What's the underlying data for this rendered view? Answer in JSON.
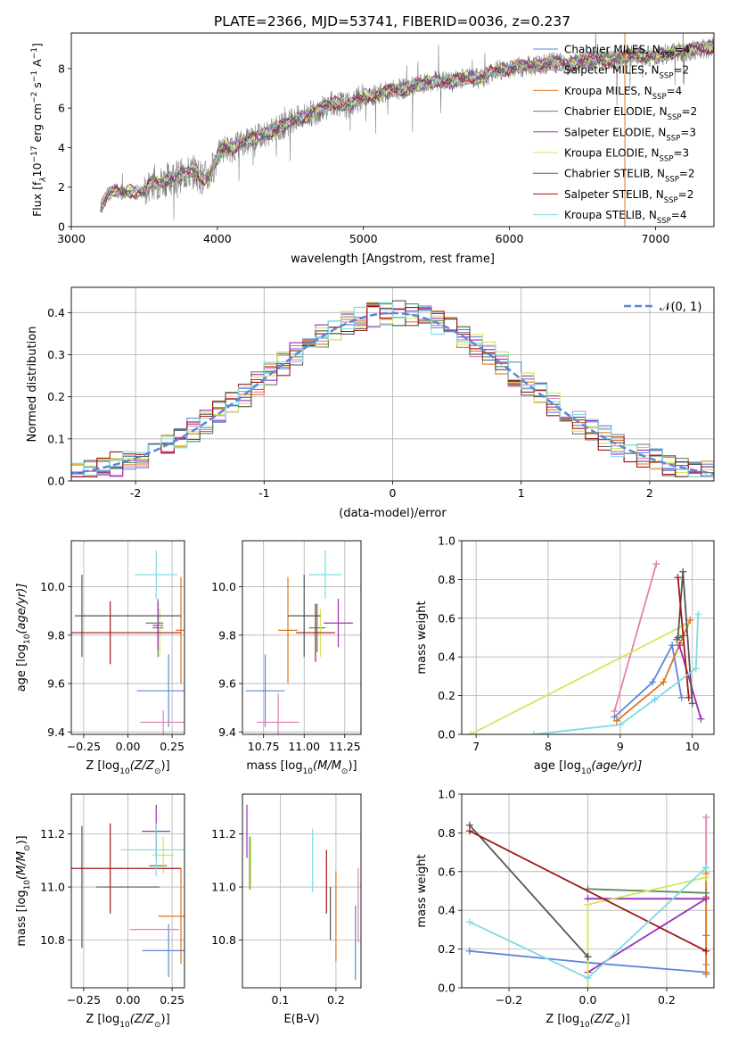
{
  "title": "PLATE=2366, MJD=53741, FIBERID=0036, z=0.237",
  "colors": {
    "chabrier_miles": "#5b86d6",
    "salpeter_miles": "#e47fb4",
    "kroupa_miles": "#e0761c",
    "chabrier_elodie": "#5a8a5a",
    "salpeter_elodie": "#9b2fb6",
    "kroupa_elodie": "#cfe85a",
    "chabrier_stelib": "#555555",
    "salpeter_stelib": "#a31717",
    "kroupa_stelib": "#7fdbe0",
    "spectrum": "#808080",
    "grid": "#b0b0b0",
    "normal": "#5b86d6"
  },
  "legend": {
    "spectrum": [
      {
        "label": "Chabrier MILES, N",
        "sub": "SSP",
        "tail": "=4",
        "color_key": "chabrier_miles"
      },
      {
        "label": "Salpeter MILES, N",
        "sub": "SSP",
        "tail": "=2",
        "color_key": "salpeter_miles"
      },
      {
        "label": "Kroupa MILES, N",
        "sub": "SSP",
        "tail": "=4",
        "color_key": "kroupa_miles"
      },
      {
        "label": "Chabrier ELODIE, N",
        "sub": "SSP",
        "tail": "=2",
        "color_key": "chabrier_elodie"
      },
      {
        "label": "Salpeter ELODIE, N",
        "sub": "SSP",
        "tail": "=3",
        "color_key": "salpeter_elodie"
      },
      {
        "label": "Kroupa ELODIE, N",
        "sub": "SSP",
        "tail": "=3",
        "color_key": "kroupa_elodie"
      },
      {
        "label": "Chabrier STELIB, N",
        "sub": "SSP",
        "tail": "=2",
        "color_key": "chabrier_stelib"
      },
      {
        "label": "Salpeter STELIB, N",
        "sub": "SSP",
        "tail": "=2",
        "color_key": "salpeter_stelib"
      },
      {
        "label": "Kroupa STELIB, N",
        "sub": "SSP",
        "tail": "=4",
        "color_key": "kroupa_stelib"
      }
    ],
    "normal_label": "𝒩(0, 1)"
  },
  "chart_data": [
    {
      "id": "spectrum",
      "type": "line",
      "xlabel": "wavelength [Angstrom, rest frame]",
      "ylabel": "Flux [f",
      "ylabel_sub": "λ",
      "ylabel_mid": "10",
      "ylabel_sup1": "−17",
      "ylabel_rest": " erg cm",
      "ylabel_sup2": "−2",
      "ylabel_rest2": " s",
      "ylabel_sup3": "−1",
      "ylabel_rest3": " A",
      "ylabel_sup4": "−1",
      "ylabel_end": "]",
      "xlim": [
        3000,
        7400
      ],
      "ylim": [
        0,
        9.8
      ],
      "xticks": [
        3000,
        4000,
        5000,
        6000,
        7000
      ],
      "yticks": [
        0,
        2,
        4,
        6,
        8
      ],
      "model": {
        "x": [
          3200,
          3250,
          3300,
          3350,
          3400,
          3450,
          3500,
          3550,
          3600,
          3650,
          3700,
          3750,
          3800,
          3850,
          3900,
          3950,
          4000,
          4050,
          4100,
          4150,
          4200,
          4300,
          4400,
          4500,
          4600,
          4700,
          4800,
          4900,
          5000,
          5100,
          5200,
          5300,
          5400,
          5500,
          5600,
          5700,
          5800,
          5900,
          6000,
          6100,
          6200,
          6300,
          6400,
          6500,
          6600,
          6700,
          6800,
          6900,
          7000,
          7100,
          7200,
          7300,
          7400
        ],
        "y": [
          1.0,
          1.6,
          1.8,
          1.7,
          1.8,
          1.75,
          1.7,
          2.3,
          2.2,
          2.4,
          2.5,
          2.6,
          2.7,
          2.8,
          2.4,
          2.6,
          3.6,
          4.0,
          3.9,
          4.2,
          4.3,
          4.6,
          4.9,
          5.3,
          5.6,
          5.9,
          6.3,
          6.1,
          6.6,
          6.7,
          6.9,
          7.0,
          7.2,
          7.4,
          7.3,
          7.6,
          7.5,
          7.9,
          8.0,
          8.1,
          8.2,
          8.3,
          8.2,
          8.4,
          8.5,
          8.4,
          8.6,
          8.7,
          8.6,
          8.8,
          8.9,
          9.0,
          9.1
        ]
      }
    },
    {
      "id": "residuals",
      "type": "step",
      "xlabel": "(data-model)/error",
      "ylabel": "Normed distribution",
      "xlim": [
        -2.5,
        2.5
      ],
      "ylim": [
        0,
        0.46
      ],
      "xticks": [
        -2,
        -1,
        0,
        1,
        2
      ],
      "yticks": [
        0.0,
        0.1,
        0.2,
        0.3,
        0.4
      ],
      "bin_width": 0.1,
      "curve": "normal"
    },
    {
      "id": "age_vs_Z",
      "type": "errorbar",
      "xlabel": "Z [log",
      "xlabel_sub": "10",
      "xlabel_rest": "(Z/Z",
      "xlabel_sub2": "⊙",
      "xlabel_end": ")]",
      "ylabel": "age  [log",
      "ylabel_sub": "10",
      "ylabel_rest": "(age/yr)]",
      "xlim": [
        -0.32,
        0.32
      ],
      "ylim": [
        9.39,
        10.19
      ],
      "xticks": [
        -0.25,
        0.0,
        0.25
      ],
      "yticks": [
        9.4,
        9.6,
        9.8,
        10.0
      ],
      "points": [
        {
          "key": "chabrier_miles",
          "x": 0.23,
          "y": 9.57,
          "xerr": 0.18,
          "yerr": 0.15
        },
        {
          "key": "salpeter_miles",
          "x": 0.2,
          "y": 9.44,
          "xerr": 0.13,
          "yerr": 0.05
        },
        {
          "key": "kroupa_miles",
          "x": 0.3,
          "y": 9.82,
          "xerr": 0.03,
          "yerr": 0.22
        },
        {
          "key": "chabrier_elodie",
          "x": 0.17,
          "y": 9.83,
          "xerr": 0.03,
          "yerr": 0.12
        },
        {
          "key": "salpeter_elodie",
          "x": 0.17,
          "y": 9.84,
          "xerr": 0.03,
          "yerr": 0.1
        },
        {
          "key": "kroupa_elodie",
          "x": 0.18,
          "y": 9.81,
          "xerr": 0.02,
          "yerr": 0.1
        },
        {
          "key": "chabrier_stelib",
          "x": -0.26,
          "y": 9.88,
          "xerr": 0.0,
          "yerr": 0.17
        },
        {
          "key": "salpeter_stelib",
          "x": -0.1,
          "y": 9.81,
          "xerr": 0.4,
          "yerr": 0.13
        },
        {
          "key": "kroupa_stelib",
          "x": 0.16,
          "y": 10.05,
          "xerr": 0.12,
          "yerr": 0.1
        },
        {
          "key": "chabrier_stelib",
          "x": 0.0,
          "y": 9.88,
          "xerr": 0.3,
          "yerr": 0.0
        },
        {
          "key": "chabrier_elodie",
          "x": 0.15,
          "y": 9.85,
          "xerr": 0.05,
          "yerr": 0.0
        }
      ]
    },
    {
      "id": "age_vs_mass",
      "type": "errorbar",
      "xlabel": "mass [log",
      "xlabel_sub": "10",
      "xlabel_rest": "(M/M",
      "xlabel_sub2": "⊙",
      "xlabel_end": ")]",
      "xlim": [
        10.62,
        11.35
      ],
      "ylim": [
        9.39,
        10.19
      ],
      "xticks": [
        10.75,
        11.0,
        11.25
      ],
      "yticks": [
        9.4,
        9.6,
        9.8,
        10.0
      ],
      "points": [
        {
          "key": "chabrier_miles",
          "x": 10.76,
          "y": 9.57,
          "xerr": 0.12,
          "yerr": 0.15
        },
        {
          "key": "salpeter_miles",
          "x": 10.84,
          "y": 9.44,
          "xerr": 0.13,
          "yerr": 0.12
        },
        {
          "key": "kroupa_miles",
          "x": 10.9,
          "y": 9.82,
          "xerr": 0.06,
          "yerr": 0.22
        },
        {
          "key": "chabrier_elodie",
          "x": 11.08,
          "y": 9.83,
          "xerr": 0.05,
          "yerr": 0.1
        },
        {
          "key": "salpeter_elodie",
          "x": 11.21,
          "y": 9.85,
          "xerr": 0.09,
          "yerr": 0.1
        },
        {
          "key": "kroupa_elodie",
          "x": 11.1,
          "y": 9.81,
          "xerr": 0.04,
          "yerr": 0.1
        },
        {
          "key": "chabrier_stelib",
          "x": 11.0,
          "y": 9.88,
          "xerr": 0.1,
          "yerr": 0.17
        },
        {
          "key": "salpeter_stelib",
          "x": 11.07,
          "y": 9.81,
          "xerr": 0.12,
          "yerr": 0.12
        },
        {
          "key": "kroupa_stelib",
          "x": 11.13,
          "y": 10.05,
          "xerr": 0.1,
          "yerr": 0.1
        }
      ]
    },
    {
      "id": "weight_vs_age",
      "type": "line",
      "xlabel": "age  [log",
      "xlabel_sub": "10",
      "xlabel_rest": "(age/yr)]",
      "ylabel": "mass weight",
      "xlim": [
        6.8,
        10.3
      ],
      "ylim": [
        0,
        1.0
      ],
      "xticks": [
        7,
        8,
        9,
        10
      ],
      "yticks": [
        0.0,
        0.2,
        0.4,
        0.6,
        0.8,
        1.0
      ],
      "series": [
        {
          "key": "chabrier_miles",
          "x": [
            8.92,
            9.45,
            9.72,
            9.85
          ],
          "y": [
            0.09,
            0.27,
            0.46,
            0.19
          ]
        },
        {
          "key": "salpeter_miles",
          "x": [
            8.92,
            9.5
          ],
          "y": [
            0.12,
            0.88
          ]
        },
        {
          "key": "kroupa_miles",
          "x": [
            8.95,
            9.6,
            9.83,
            9.97
          ],
          "y": [
            0.07,
            0.27,
            0.47,
            0.59
          ]
        },
        {
          "key": "chabrier_elodie",
          "x": [
            9.78,
            9.87
          ],
          "y": [
            0.49,
            0.51
          ]
        },
        {
          "key": "salpeter_elodie",
          "x": [
            9.82,
            10.12
          ],
          "y": [
            0.46,
            0.08
          ]
        },
        {
          "key": "kroupa_elodie",
          "x": [
            6.92,
            9.92
          ],
          "y": [
            0.0,
            0.57
          ]
        },
        {
          "key": "chabrier_stelib",
          "x": [
            9.8,
            9.87,
            10.0
          ],
          "y": [
            0.5,
            0.84,
            0.16
          ]
        },
        {
          "key": "salpeter_stelib",
          "x": [
            9.8,
            9.95
          ],
          "y": [
            0.81,
            0.19
          ]
        },
        {
          "key": "kroupa_stelib",
          "x": [
            7.8,
            9.0,
            9.48,
            10.05,
            10.08
          ],
          "y": [
            0.0,
            0.05,
            0.18,
            0.34,
            0.62
          ]
        }
      ]
    },
    {
      "id": "mass_vs_Z",
      "type": "errorbar",
      "xlabel": "Z [log",
      "xlabel_sub": "10",
      "xlabel_rest": "(Z/Z",
      "xlabel_sub2": "⊙",
      "xlabel_end": ")]",
      "ylabel": "mass [log",
      "ylabel_sub": "10",
      "ylabel_rest": "(M/M",
      "ylabel_sub2": "⊙",
      "ylabel_end": ")]",
      "xlim": [
        -0.32,
        0.32
      ],
      "ylim": [
        10.62,
        11.35
      ],
      "xticks": [
        -0.25,
        0.0,
        0.25
      ],
      "yticks": [
        10.8,
        11.0,
        11.2
      ],
      "points": [
        {
          "key": "chabrier_miles",
          "x": 0.23,
          "y": 10.76,
          "xerr": 0.15,
          "yerr": 0.1
        },
        {
          "key": "salpeter_miles",
          "x": 0.15,
          "y": 10.84,
          "xerr": 0.14,
          "yerr": 0.0
        },
        {
          "key": "kroupa_miles",
          "x": 0.3,
          "y": 10.89,
          "xerr": 0.13,
          "yerr": 0.18
        },
        {
          "key": "chabrier_elodie",
          "x": 0.17,
          "y": 11.08,
          "xerr": 0.05,
          "yerr": 0.0
        },
        {
          "key": "salpeter_elodie",
          "x": 0.16,
          "y": 11.21,
          "xerr": 0.08,
          "yerr": 0.1
        },
        {
          "key": "kroupa_elodie",
          "x": 0.2,
          "y": 11.12,
          "xerr": 0.06,
          "yerr": 0.07
        },
        {
          "key": "chabrier_stelib",
          "x": -0.26,
          "y": 11.0,
          "xerr": 0.0,
          "yerr": 0.23
        },
        {
          "key": "salpeter_stelib",
          "x": -0.1,
          "y": 11.07,
          "xerr": 0.4,
          "yerr": 0.17
        },
        {
          "key": "kroupa_stelib",
          "x": 0.16,
          "y": 11.14,
          "xerr": 0.2,
          "yerr": 0.1
        },
        {
          "key": "chabrier_stelib",
          "x": 0.0,
          "y": 11.0,
          "xerr": 0.18,
          "yerr": 0.0
        },
        {
          "key": "kroupa_miles",
          "x": 0.3,
          "y": 10.89,
          "xerr": 0.0,
          "yerr": 0.0
        }
      ]
    },
    {
      "id": "mass_vs_ebv",
      "type": "errorbar",
      "xlabel": "E(B-V)",
      "xlim": [
        0.032,
        0.245
      ],
      "ylim": [
        10.62,
        11.35
      ],
      "xticks": [
        0.1,
        0.2
      ],
      "yticks": [
        10.8,
        11.0,
        11.2
      ],
      "points": [
        {
          "key": "chabrier_miles",
          "x": 0.235,
          "y": 10.79,
          "xerr": 0.0,
          "yerr": 0.14
        },
        {
          "key": "salpeter_miles",
          "x": 0.24,
          "y": 10.93,
          "xerr": 0.0,
          "yerr": 0.14
        },
        {
          "key": "kroupa_miles",
          "x": 0.2,
          "y": 10.89,
          "xerr": 0.0,
          "yerr": 0.17
        },
        {
          "key": "chabrier_elodie",
          "x": 0.045,
          "y": 11.09,
          "xerr": 0.0,
          "yerr": 0.1
        },
        {
          "key": "salpeter_elodie",
          "x": 0.04,
          "y": 11.21,
          "xerr": 0.0,
          "yerr": 0.1
        },
        {
          "key": "kroupa_elodie",
          "x": 0.047,
          "y": 11.09,
          "xerr": 0.0,
          "yerr": 0.1
        },
        {
          "key": "chabrier_stelib",
          "x": 0.19,
          "y": 10.9,
          "xerr": 0.0,
          "yerr": 0.1
        },
        {
          "key": "salpeter_stelib",
          "x": 0.183,
          "y": 11.02,
          "xerr": 0.0,
          "yerr": 0.12
        },
        {
          "key": "kroupa_stelib",
          "x": 0.158,
          "y": 11.1,
          "xerr": 0.0,
          "yerr": 0.12
        }
      ]
    },
    {
      "id": "weight_vs_Z",
      "type": "line",
      "xlabel": "Z [log",
      "xlabel_sub": "10",
      "xlabel_rest": "(Z/Z",
      "xlabel_sub2": "⊙",
      "xlabel_end": ")]",
      "ylabel": "mass weight",
      "xlim": [
        -0.32,
        0.32
      ],
      "ylim": [
        0,
        1.0
      ],
      "xticks": [
        -0.2,
        0.0,
        0.2
      ],
      "yticks": [
        0.0,
        0.2,
        0.4,
        0.6,
        0.8,
        1.0
      ],
      "series": [
        {
          "key": "chabrier_miles",
          "x": [
            -0.3,
            0.0,
            0.3
          ],
          "y": [
            0.19,
            0.13,
            0.08
          ]
        },
        {
          "key": "salpeter_miles",
          "x": [
            0.3,
            0.3
          ],
          "y": [
            0.12,
            0.88
          ]
        },
        {
          "key": "kroupa_miles",
          "x": [
            0.3,
            0.3,
            0.3,
            0.3
          ],
          "y": [
            0.07,
            0.27,
            0.47,
            0.59
          ]
        },
        {
          "key": "chabrier_elodie",
          "x": [
            0.0,
            0.3
          ],
          "y": [
            0.51,
            0.49
          ]
        },
        {
          "key": "salpeter_elodie",
          "x": [
            0.0,
            0.3,
            0.0
          ],
          "y": [
            0.08,
            0.46,
            0.46
          ]
        },
        {
          "key": "kroupa_elodie",
          "x": [
            0.0,
            0.0,
            0.3
          ],
          "y": [
            0.0,
            0.43,
            0.57
          ]
        },
        {
          "key": "chabrier_stelib",
          "x": [
            -0.3,
            0.0,
            0.0
          ],
          "y": [
            0.84,
            0.16,
            0.16
          ]
        },
        {
          "key": "salpeter_stelib",
          "x": [
            -0.3,
            0.3
          ],
          "y": [
            0.81,
            0.19
          ]
        },
        {
          "key": "kroupa_stelib",
          "x": [
            -0.3,
            0.0,
            0.3,
            0.3
          ],
          "y": [
            0.34,
            0.05,
            0.62,
            0.62
          ]
        }
      ]
    }
  ]
}
